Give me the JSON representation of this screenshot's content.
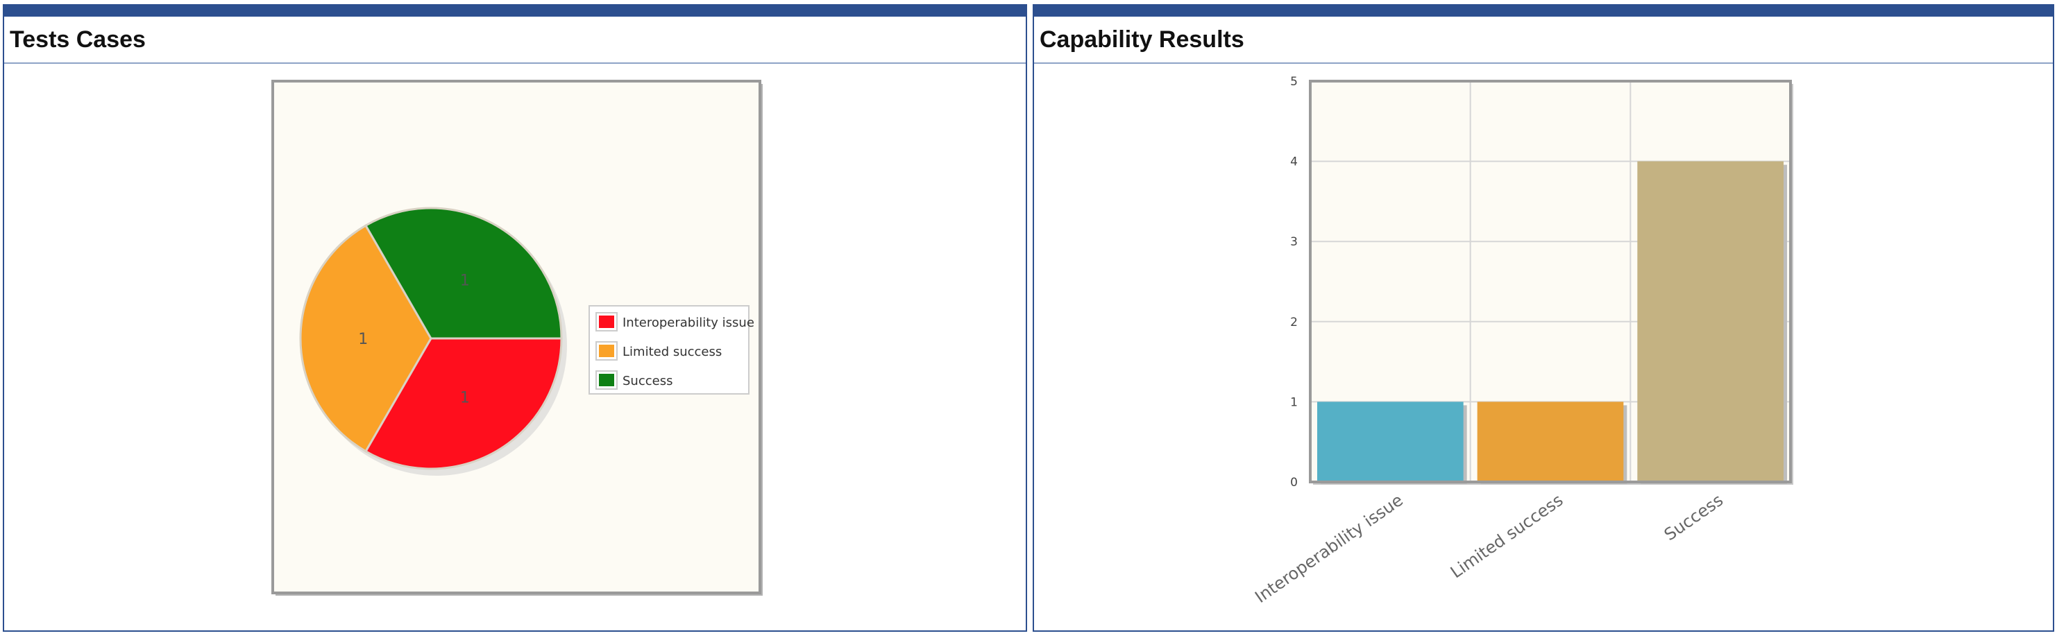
{
  "panels": {
    "left": {
      "title": "Tests Cases"
    },
    "right": {
      "title": "Capability Results"
    }
  },
  "colors": {
    "frame": "#2c4f8f",
    "plot_background": "#fdfbf4",
    "interoperability_issue": "#ff0e1d",
    "limited_success": "#faa228",
    "success": "#0f8015",
    "bar_interoperability_issue": "#55b0c6",
    "bar_limited_success": "#e8a139",
    "bar_success": "#c4b282"
  },
  "chart_data": [
    {
      "type": "pie",
      "title": "",
      "slices": [
        {
          "label": "Interoperability issue",
          "value": 1,
          "color": "#ff0e1d"
        },
        {
          "label": "Limited success",
          "value": 1,
          "color": "#faa228"
        },
        {
          "label": "Success",
          "value": 1,
          "color": "#0f8015"
        }
      ],
      "data_labels": [
        "1",
        "1",
        "1"
      ],
      "legend": [
        "Interoperability issue",
        "Limited success",
        "Success"
      ],
      "legend_placement": "right"
    },
    {
      "type": "bar",
      "title": "",
      "categories": [
        "Interoperability issue",
        "Limited success",
        "Success"
      ],
      "values": [
        1,
        1,
        4
      ],
      "bar_colors": [
        "#55b0c6",
        "#e8a139",
        "#c4b282"
      ],
      "ylim": [
        0,
        5
      ],
      "yticks": [
        "0",
        "1",
        "2",
        "3",
        "4",
        "5"
      ],
      "xlabel": "",
      "ylabel": "",
      "grid": true,
      "tick_label_rotation": "diagonal"
    }
  ]
}
